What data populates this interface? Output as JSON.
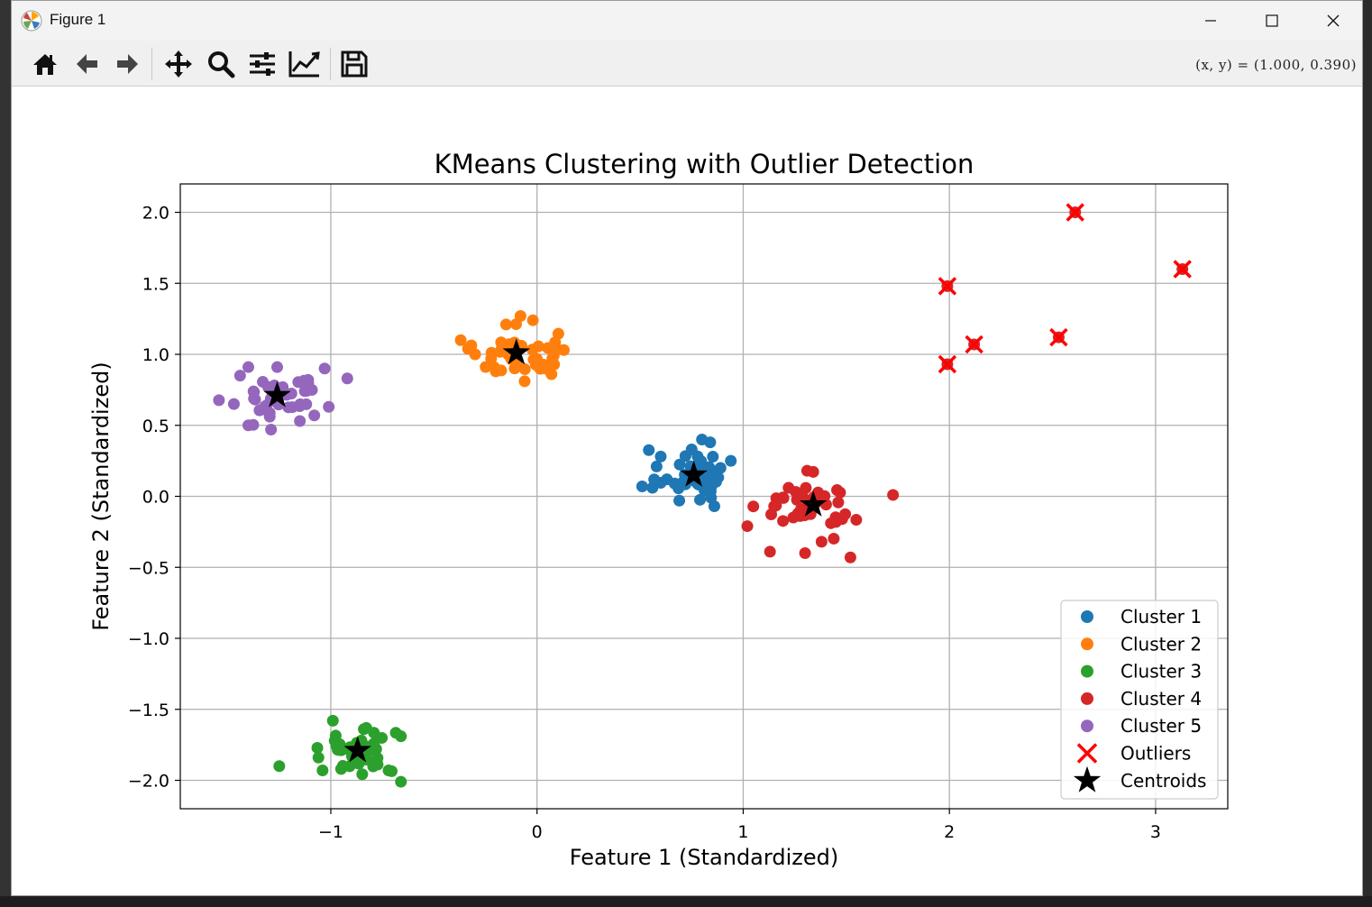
{
  "window": {
    "title": "Figure 1",
    "coord_readout": "(x,  y) = (1.000,  0.390)"
  },
  "toolbar": {
    "buttons": [
      {
        "name": "home-button",
        "icon": "home-icon"
      },
      {
        "name": "back-button",
        "icon": "arrow-left-icon"
      },
      {
        "name": "forward-button",
        "icon": "arrow-right-icon"
      },
      {
        "name": "pan-button",
        "icon": "move-icon"
      },
      {
        "name": "zoom-button",
        "icon": "magnifier-icon"
      },
      {
        "name": "subplots-button",
        "icon": "sliders-icon"
      },
      {
        "name": "edit-axis-button",
        "icon": "chart-line-icon"
      },
      {
        "name": "save-button",
        "icon": "floppy-disk-icon"
      }
    ]
  },
  "chart_data": {
    "type": "scatter",
    "title": "KMeans Clustering with Outlier Detection",
    "xlabel": "Feature 1 (Standardized)",
    "ylabel": "Feature 2 (Standardized)",
    "xlim": [
      -1.73,
      3.35
    ],
    "ylim": [
      -2.2,
      2.2
    ],
    "xticks": [
      -1,
      0,
      1,
      2,
      3
    ],
    "xtick_labels": [
      "−1",
      "0",
      "1",
      "2",
      "3"
    ],
    "yticks": [
      2.0,
      1.5,
      1.0,
      0.5,
      0.0,
      -0.5,
      -1.0,
      -1.5,
      -2.0
    ],
    "ytick_labels": [
      "2.0",
      "1.5",
      "1.0",
      "0.5",
      "0.0",
      "−0.5",
      "−1.0",
      "−1.5",
      "−2.0"
    ],
    "grid": true,
    "legend_position": "lower-right",
    "series": [
      {
        "name": "Cluster 1",
        "color": "#1f77b4",
        "center": [
          0.76,
          0.15
        ],
        "spread": [
          0.09,
          0.09
        ],
        "count": 50,
        "points": [
          [
            0.51,
            0.07
          ],
          [
            0.56,
            0.06
          ],
          [
            0.6,
            0.28
          ],
          [
            0.69,
            -0.03
          ],
          [
            0.8,
            0.4
          ],
          [
            0.84,
            0.38
          ],
          [
            0.86,
            -0.07
          ],
          [
            0.94,
            0.25
          ],
          [
            0.89,
            0.2
          ],
          [
            0.58,
            0.21
          ],
          [
            0.63,
            0.12
          ],
          [
            0.75,
            0.33
          ]
        ]
      },
      {
        "name": "Cluster 2",
        "color": "#ff7f0e",
        "center": [
          -0.1,
          1.01
        ],
        "spread": [
          0.1,
          0.08
        ],
        "count": 50,
        "points": [
          [
            -0.37,
            1.1
          ],
          [
            -0.15,
            1.21
          ],
          [
            -0.08,
            1.27
          ],
          [
            -0.02,
            1.24
          ],
          [
            0.13,
            1.03
          ],
          [
            0.07,
            0.86
          ],
          [
            -0.06,
            0.81
          ],
          [
            -0.3,
            1.0
          ],
          [
            0.04,
            0.9
          ],
          [
            -0.2,
            0.88
          ]
        ]
      },
      {
        "name": "Cluster 3",
        "color": "#2ca02c",
        "center": [
          -0.87,
          -1.79
        ],
        "spread": [
          0.09,
          0.08
        ],
        "count": 50,
        "points": [
          [
            -1.25,
            -1.9
          ],
          [
            -0.99,
            -1.58
          ],
          [
            -0.84,
            -1.64
          ],
          [
            -0.66,
            -1.69
          ],
          [
            -0.66,
            -2.01
          ],
          [
            -0.72,
            -1.93
          ],
          [
            -1.04,
            -1.93
          ],
          [
            -1.06,
            -1.84
          ],
          [
            -0.95,
            -1.92
          ],
          [
            -0.78,
            -1.78
          ]
        ]
      },
      {
        "name": "Cluster 4",
        "color": "#d62728",
        "center": [
          1.34,
          -0.06
        ],
        "spread": [
          0.12,
          0.09
        ],
        "count": 50,
        "points": [
          [
            1.02,
            -0.21
          ],
          [
            1.31,
            0.18
          ],
          [
            1.52,
            -0.43
          ],
          [
            1.48,
            -0.16
          ],
          [
            1.45,
            -0.18
          ],
          [
            1.22,
            0.06
          ],
          [
            1.13,
            -0.39
          ],
          [
            1.3,
            -0.4
          ],
          [
            1.15,
            -0.07
          ],
          [
            1.38,
            -0.32
          ]
        ]
      },
      {
        "name": "Cluster 5",
        "color": "#9467bd",
        "center": [
          -1.26,
          0.71
        ],
        "spread": [
          0.1,
          0.08
        ],
        "count": 50,
        "points": [
          [
            -1.44,
            0.85
          ],
          [
            -1.4,
            0.91
          ],
          [
            -1.26,
            0.91
          ],
          [
            -1.03,
            0.9
          ],
          [
            -0.92,
            0.83
          ],
          [
            -1.29,
            0.47
          ],
          [
            -1.4,
            0.5
          ],
          [
            -1.47,
            0.65
          ],
          [
            -1.08,
            0.57
          ],
          [
            -1.15,
            0.53
          ],
          [
            -1.01,
            0.63
          ],
          [
            -1.11,
            0.82
          ]
        ]
      },
      {
        "name": "Outliers",
        "color": "#ff0000",
        "marker": "x",
        "points": [
          [
            2.61,
            2.0
          ],
          [
            3.13,
            1.6
          ],
          [
            1.99,
            1.48
          ],
          [
            2.12,
            1.07
          ],
          [
            2.53,
            1.12
          ],
          [
            1.99,
            0.93
          ]
        ]
      },
      {
        "name": "Centroids",
        "color": "#000000",
        "marker": "star",
        "points": [
          [
            0.76,
            0.15
          ],
          [
            -0.1,
            1.01
          ],
          [
            -0.87,
            -1.79
          ],
          [
            1.34,
            -0.06
          ],
          [
            -1.26,
            0.71
          ]
        ]
      }
    ]
  }
}
